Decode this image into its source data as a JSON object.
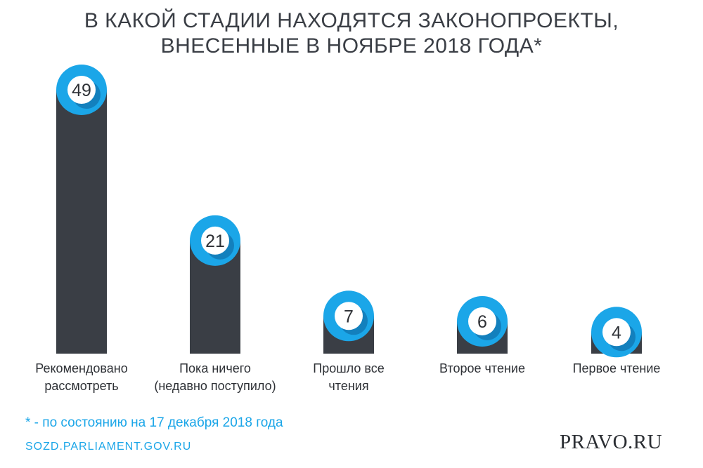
{
  "header": {
    "title_line1": "В КАКОЙ СТАДИИ НАХОДЯТСЯ ЗАКОНОПРОЕКТЫ,",
    "title_line2": "ВНЕСЕННЫЕ В НОЯБРЕ 2018 ГОДА*"
  },
  "chart_data": {
    "type": "bar",
    "title": "В КАКОЙ СТАДИИ НАХОДЯТСЯ ЗАКОНОПРОЕКТЫ, ВНЕСЕННЫЕ В НОЯБРЕ 2018 ГОДА*",
    "categories": [
      [
        "Рекомендовано",
        "рассмотреть"
      ],
      [
        "Пока ничего",
        "(недавно поступило)"
      ],
      [
        "Прошло все",
        "чтения"
      ],
      [
        "Второе чтение"
      ],
      [
        "Первое чтение"
      ]
    ],
    "values": [
      49,
      21,
      7,
      6,
      4
    ],
    "xlabel": "",
    "ylabel": "",
    "ylim": [
      0,
      49
    ],
    "grid": false,
    "colors": {
      "bar": "#3a3e45",
      "ring": "#1ba6e8",
      "ring_shadow": "#1380bd",
      "badge": "#ffffff",
      "label": "#2e3136"
    }
  },
  "footer": {
    "footnote": "* - по состоянию на 17 декабря 2018 года",
    "source": "SOZD.PARLIAMENT.GOV.RU",
    "brand": "PRAVO.RU"
  }
}
